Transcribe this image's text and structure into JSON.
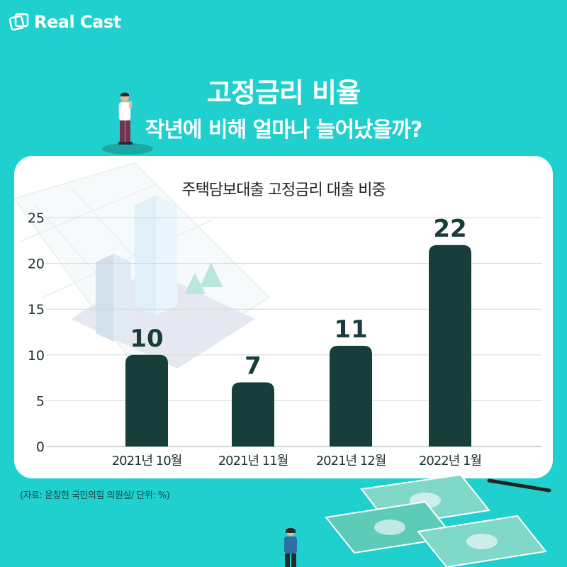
{
  "brand": {
    "name": "Real Cast"
  },
  "header": {
    "title": "고정금리 비율",
    "subtitle": "작년에 비해 얼마나 늘어났을까?"
  },
  "chart_data": {
    "type": "bar",
    "title": "주택담보대출 고정금리 대출 비중",
    "categories": [
      "2021년 10월",
      "2021년 11월",
      "2021년 12월",
      "2022년 1월"
    ],
    "values": [
      10,
      7,
      11,
      22
    ],
    "value_labels": [
      "10",
      "7",
      "11",
      "22"
    ],
    "ylim": [
      0,
      25
    ],
    "yticks": [
      "0",
      "5",
      "10",
      "15",
      "20",
      "25"
    ],
    "xlabel": "",
    "ylabel": "",
    "grid": true,
    "bar_color": "#173e3a"
  },
  "footer": {
    "source": "(자료: 윤창현 국민의힘 의원실/ 단위: %)"
  },
  "colors": {
    "background": "#1fd0cf",
    "card": "#ffffff",
    "bar": "#173e3a"
  }
}
